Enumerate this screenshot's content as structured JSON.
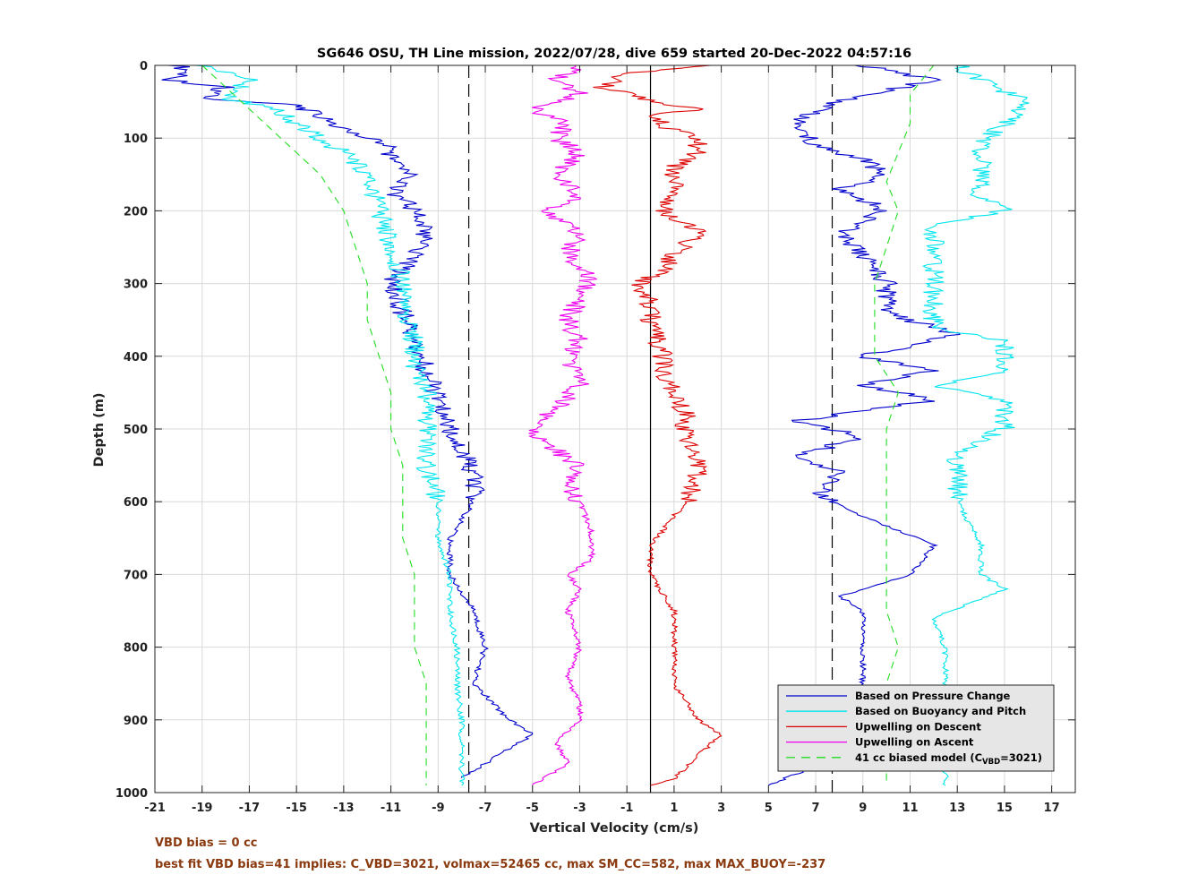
{
  "chart_data": {
    "type": "line",
    "title": "SG646 OSU, TH Line mission, 2022/07/28, dive 659 started 20-Dec-2022 04:57:16",
    "xlabel": "Vertical Velocity (cm/s)",
    "ylabel": "Depth (m)",
    "xlim": [
      -21,
      18
    ],
    "ylim": [
      1000,
      0
    ],
    "y_reversed": true,
    "xticks": [
      "-21",
      "-19",
      "-17",
      "-15",
      "-13",
      "-11",
      "-9",
      "-7",
      "-5",
      "-3",
      "-1",
      "1",
      "3",
      "5",
      "7",
      "9",
      "11",
      "13",
      "15",
      "17"
    ],
    "yticks": [
      "0",
      "100",
      "200",
      "300",
      "400",
      "500",
      "600",
      "700",
      "800",
      "900",
      "1000"
    ],
    "grid": true,
    "legend_position": "bottom-right",
    "reference_lines": [
      {
        "x": -7.7,
        "style": "dashed",
        "color": "#000000"
      },
      {
        "x": 0,
        "style": "solid",
        "color": "#000000"
      },
      {
        "x": 7.7,
        "style": "dashed",
        "color": "#000000"
      }
    ],
    "series": [
      {
        "name": "Based on Pressure Change",
        "color": "#0000cd",
        "style": "solid",
        "branches": [
          {
            "depth": [
              0,
              10,
              20,
              30,
              45,
              55,
              70,
              90,
              110,
              130,
              150,
              170,
              200,
              230,
              260,
              300,
              340,
              380,
              420,
              460,
              500,
              530,
              560,
              600,
              650,
              700,
              750,
              800,
              850,
              900,
              920,
              950,
              980
            ],
            "x": [
              -20,
              -19.5,
              -20.5,
              -18,
              -19,
              -15,
              -14,
              -13,
              -11,
              -11,
              -10,
              -11,
              -10,
              -9.5,
              -10,
              -11,
              -10.5,
              -10,
              -9.5,
              -9,
              -8.5,
              -8,
              -7.5,
              -7.5,
              -8.5,
              -8.5,
              -7.5,
              -7,
              -7.5,
              -6,
              -5,
              -6.5,
              -8
            ]
          },
          {
            "depth": [
              0,
              20,
              50,
              80,
              110,
              130,
              150,
              170,
              200,
              230,
              260,
              300,
              340,
              370,
              400,
              420,
              440,
              460,
              490,
              510,
              540,
              560,
              590,
              620,
              660,
              700,
              730,
              750,
              800,
              850,
              900,
              950,
              990
            ],
            "x": [
              9,
              12,
              8,
              6,
              7,
              9,
              10,
              8,
              10,
              8,
              9,
              10,
              10,
              13,
              9,
              12,
              9,
              12,
              6,
              9,
              6,
              8,
              7,
              9,
              12,
              11,
              8,
              9,
              9,
              9,
              9.5,
              8,
              5
            ]
          }
        ]
      },
      {
        "name": "Based on Buoyancy and Pitch",
        "color": "#00e5ee",
        "style": "solid",
        "branches": [
          {
            "depth": [
              0,
              20,
              45,
              60,
              80,
              100,
              120,
              150,
              200,
              250,
              300,
              340,
              380,
              410,
              450,
              500,
              550,
              600,
              650,
              700,
              750,
              800,
              850,
              900,
              950,
              990
            ],
            "x": [
              -19,
              -17,
              -18,
              -16,
              -15,
              -14,
              -13,
              -12,
              -11.5,
              -11,
              -10.5,
              -10.5,
              -10,
              -10,
              -9.5,
              -9.5,
              -9.5,
              -9,
              -9,
              -8.5,
              -8.5,
              -8.2,
              -8.2,
              -8,
              -8,
              -8
            ]
          },
          {
            "depth": [
              0,
              20,
              50,
              80,
              110,
              150,
              180,
              200,
              220,
              250,
              300,
              360,
              380,
              420,
              440,
              460,
              500,
              530,
              560,
              600,
              660,
              700,
              720,
              760,
              800,
              850,
              900,
              950,
              990
            ],
            "x": [
              13,
              14,
              16,
              15,
              14,
              14,
              14,
              15,
              12,
              12,
              12,
              12,
              15,
              15,
              12,
              15,
              15,
              13,
              13,
              13,
              14,
              14,
              15,
              12,
              12.5,
              12.5,
              13,
              12.5,
              12.5
            ]
          }
        ]
      },
      {
        "name": "Upwelling on Descent",
        "color": "#dd0000",
        "style": "solid",
        "branches": [
          {
            "depth": [
              0,
              10,
              30,
              50,
              60,
              70,
              90,
              100,
              120,
              140,
              160,
              180,
              200,
              230,
              260,
              280,
              300,
              330,
              360,
              390,
              420,
              450,
              480,
              510,
              540,
              570,
              600,
              640,
              660,
              700,
              750,
              800,
              850,
              900,
              920,
              950,
              980,
              990
            ],
            "x": [
              3,
              -1,
              -2,
              0,
              2,
              0,
              1,
              2,
              2,
              1,
              1,
              1,
              0.5,
              2,
              1,
              0.5,
              -0.5,
              0,
              0,
              0.5,
              0.5,
              1,
              1.5,
              1.5,
              2,
              2,
              1.5,
              0.5,
              0,
              0,
              1,
              1,
              1,
              2,
              3,
              2,
              1,
              0
            ]
          }
        ]
      },
      {
        "name": "Upwelling on Ascent",
        "color": "#ee00ee",
        "style": "solid",
        "branches": [
          {
            "depth": [
              0,
              20,
              40,
              60,
              80,
              100,
              120,
              150,
              180,
              200,
              230,
              260,
              290,
              320,
              350,
              380,
              410,
              440,
              470,
              500,
              520,
              550,
              580,
              600,
              640,
              680,
              700,
              720,
              750,
              800,
              840,
              880,
              900,
              930,
              960,
              990
            ],
            "x": [
              -3,
              -4,
              -3,
              -5,
              -3.5,
              -4,
              -3,
              -4,
              -3,
              -4.5,
              -3,
              -3.5,
              -2.5,
              -3,
              -3.5,
              -3,
              -3.5,
              -3,
              -4,
              -5,
              -4.5,
              -3,
              -3.5,
              -3,
              -2.5,
              -2.5,
              -3.5,
              -3,
              -3.5,
              -3,
              -3.5,
              -3,
              -3,
              -4,
              -3.5,
              -5
            ]
          }
        ]
      },
      {
        "name": "41 cc biased model (C_VBD=3021)",
        "color": "#22dd22",
        "style": "dashed",
        "branches": [
          {
            "depth": [
              0,
              30,
              60,
              90,
              120,
              150,
              200,
              250,
              300,
              350,
              400,
              450,
              500,
              550,
              600,
              650,
              700,
              750,
              800,
              850,
              900,
              950,
              990
            ],
            "x": [
              -19,
              -18,
              -17,
              -16,
              -15,
              -14,
              -13,
              -12.5,
              -12,
              -12,
              -11.5,
              -11,
              -11,
              -10.5,
              -10.5,
              -10.5,
              -10,
              -10,
              -10,
              -9.5,
              -9.5,
              -9.5,
              -9.5
            ]
          },
          {
            "depth": [
              0,
              40,
              80,
              120,
              160,
              200,
              250,
              300,
              350,
              400,
              450,
              500,
              550,
              600,
              650,
              700,
              750,
              800,
              850,
              900,
              950,
              990
            ],
            "x": [
              12,
              11,
              11,
              10.5,
              10,
              10.5,
              10,
              9.5,
              9.5,
              9.5,
              10.5,
              10,
              10,
              10,
              10,
              10,
              10,
              10.5,
              10,
              10,
              10,
              10
            ]
          }
        ]
      }
    ]
  },
  "legend": {
    "items": [
      {
        "label": "Based on Pressure Change"
      },
      {
        "label": "Based on Buoyancy and Pitch"
      },
      {
        "label": "Upwelling on Descent"
      },
      {
        "label": "Upwelling on Ascent"
      },
      {
        "label_main": "41 cc biased model (C",
        "label_sub": "VBD",
        "label_tail": "=3021)"
      }
    ]
  },
  "footer": {
    "line1": "VBD bias = 0 cc",
    "line2": "best fit VBD bias=41 implies: C_VBD=3021, volmax=52465 cc, max SM_CC=582, max MAX_BUOY=-237"
  },
  "colors": {
    "footer_text": "#8b3a0f",
    "legend_bg": "#e6e6e6",
    "grid": "#d9d9d9"
  }
}
